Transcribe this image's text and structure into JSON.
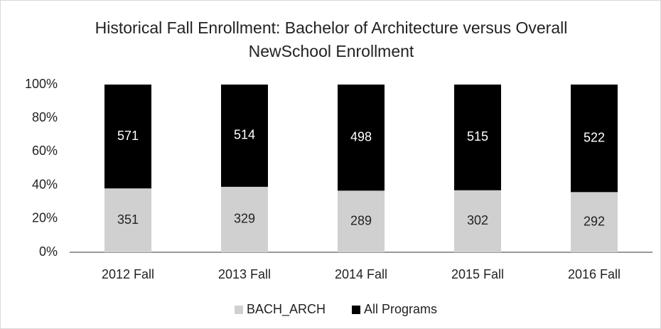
{
  "chart_data": {
    "type": "bar",
    "stacking": "percent",
    "title": "Historical Fall Enrollment: Bachelor of Architecture versus Overall NewSchool Enrollment",
    "categories": [
      "2012 Fall",
      "2013 Fall",
      "2014 Fall",
      "2015 Fall",
      "2016 Fall"
    ],
    "series": [
      {
        "name": "BACH_ARCH",
        "color": "#d0d0d0",
        "label_color": "#222222",
        "values": [
          351,
          329,
          289,
          302,
          292
        ]
      },
      {
        "name": "All Programs",
        "color": "#000000",
        "label_color": "#ffffff",
        "values": [
          571,
          514,
          498,
          515,
          522
        ]
      }
    ],
    "ylim": [
      0,
      100
    ],
    "yticks": [
      {
        "value": 0,
        "label": "0%"
      },
      {
        "value": 20,
        "label": "20%"
      },
      {
        "value": 40,
        "label": "40%"
      },
      {
        "value": 60,
        "label": "60%"
      },
      {
        "value": 80,
        "label": "80%"
      },
      {
        "value": 100,
        "label": "100%"
      }
    ],
    "grid": false,
    "legend": "bottom"
  }
}
